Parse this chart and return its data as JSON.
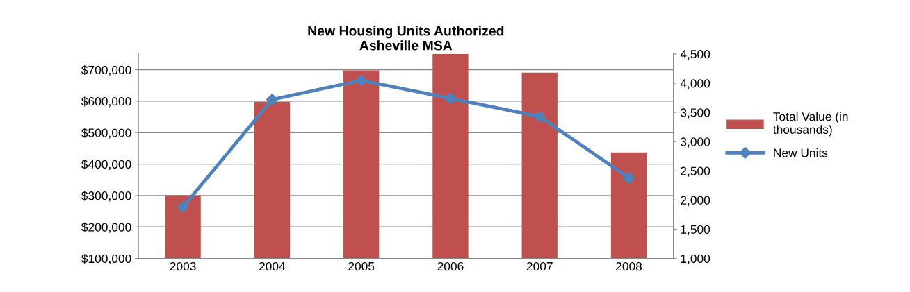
{
  "chart_data": {
    "type": "bar",
    "title": "New Housing Units Authorized\nAsheville MSA",
    "categories": [
      "2003",
      "2004",
      "2005",
      "2006",
      "2007",
      "2008"
    ],
    "series": [
      {
        "name": "Total Value (in\nthousands)",
        "color": "#c0504d",
        "values": [
          301000,
          598000,
          698000,
          750000,
          691000,
          437000
        ]
      },
      {
        "name": "New Units",
        "type": "line",
        "axis": "y2",
        "color": "#4f81bd",
        "marker": "diamond",
        "values": [
          1880,
          3720,
          4050,
          3740,
          3430,
          2380
        ]
      }
    ],
    "ylim": [
      100000,
      750000
    ],
    "yticks": [
      {
        "value": 100000,
        "label": "$100,000"
      },
      {
        "value": 200000,
        "label": "$200,000"
      },
      {
        "value": 300000,
        "label": "$300,000"
      },
      {
        "value": 400000,
        "label": "$400,000"
      },
      {
        "value": 500000,
        "label": "$500,000"
      },
      {
        "value": 600000,
        "label": "$600,000"
      },
      {
        "value": 700000,
        "label": "$700,000"
      }
    ],
    "y2lim": [
      1000,
      4500
    ],
    "y2ticks": [
      {
        "value": 1000,
        "label": "1,000"
      },
      {
        "value": 1500,
        "label": "1,500"
      },
      {
        "value": 2000,
        "label": "2,000"
      },
      {
        "value": 2500,
        "label": "2,500"
      },
      {
        "value": 3000,
        "label": "3,000"
      },
      {
        "value": 3500,
        "label": "3,500"
      },
      {
        "value": 4000,
        "label": "4,000"
      },
      {
        "value": 4500,
        "label": "4,500"
      }
    ],
    "grid": "y",
    "legend": "right"
  }
}
